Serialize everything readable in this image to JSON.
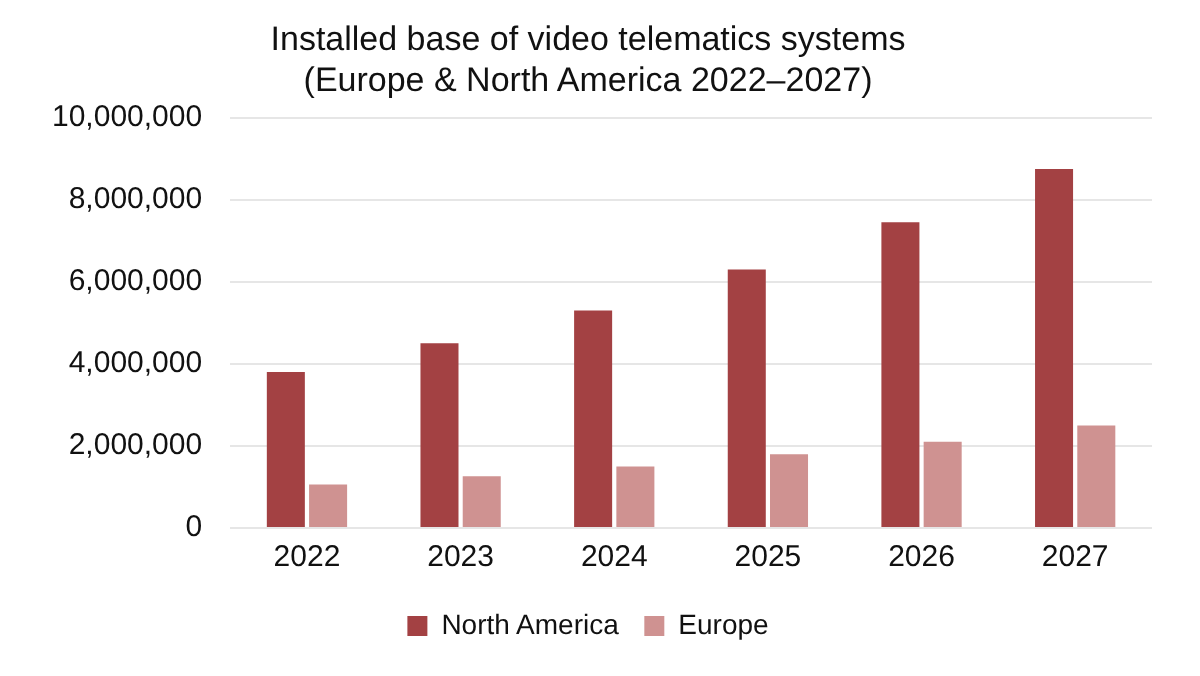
{
  "chart_data": {
    "type": "bar",
    "title": [
      "Installed base of video telematics systems",
      "(Europe & North America 2022–2027)"
    ],
    "categories": [
      "2022",
      "2023",
      "2024",
      "2025",
      "2026",
      "2027"
    ],
    "series": [
      {
        "name": "North America",
        "color": "#a34143",
        "values": [
          3800000,
          4500000,
          5300000,
          6300000,
          7450000,
          8750000
        ]
      },
      {
        "name": "Europe",
        "color": "#cf9291",
        "values": [
          1060000,
          1260000,
          1500000,
          1800000,
          2100000,
          2500000
        ]
      }
    ],
    "ylim": [
      0,
      10000000
    ],
    "yticks": [
      0,
      {
        "value": 2000000,
        "label": "2,000,000"
      },
      {
        "value": 4000000,
        "label": "4,000,000"
      },
      {
        "value": 6000000,
        "label": "6,000,000"
      },
      {
        "value": 8000000,
        "label": "8,000,000"
      },
      {
        "value": 10000000,
        "label": "10,000,000"
      }
    ],
    "grid": "y",
    "legend": "bottom"
  }
}
